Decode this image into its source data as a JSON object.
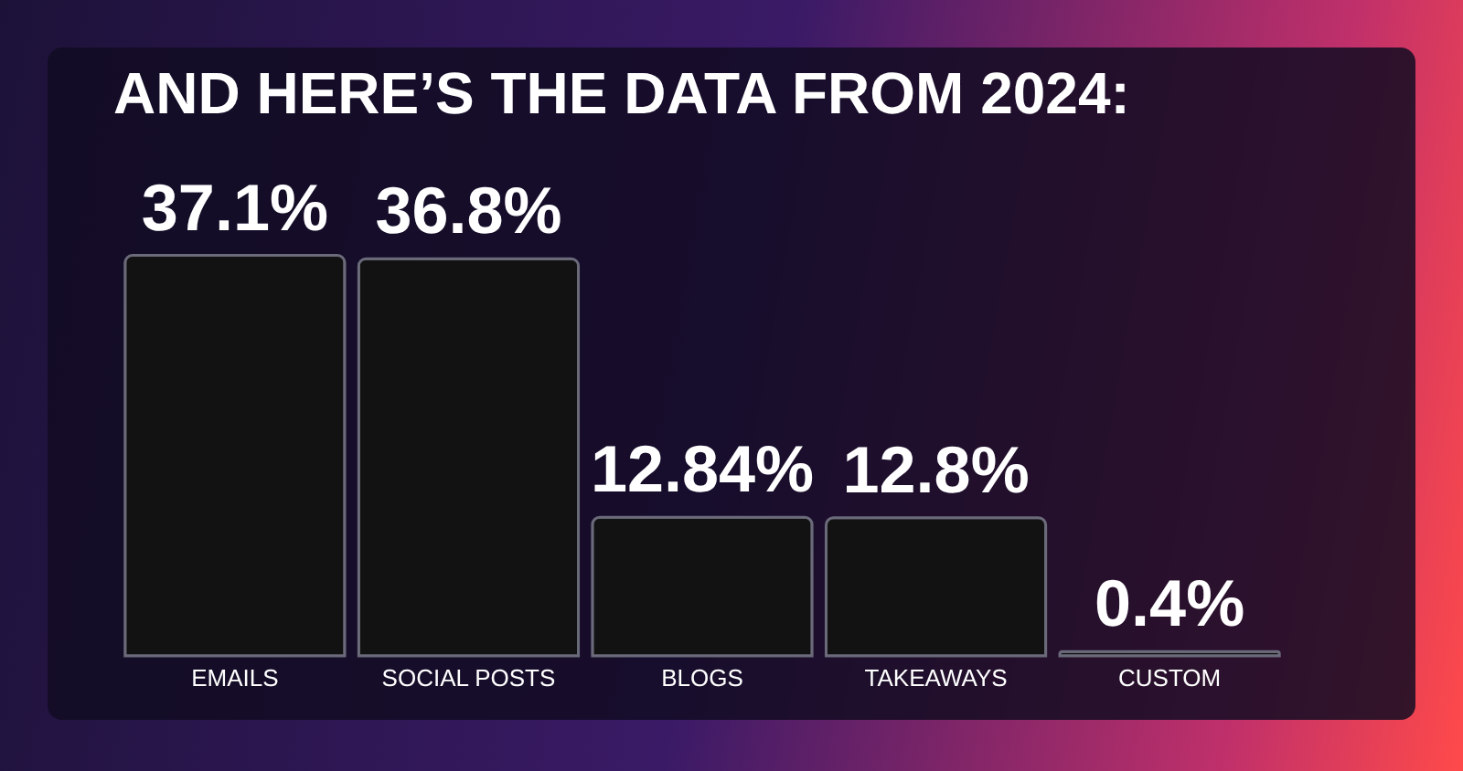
{
  "chart_data": {
    "type": "bar",
    "title": "AND HERE’S THE DATA FROM 2024:",
    "categories": [
      "EMAILS",
      "SOCIAL POSTS",
      "BLOGS",
      "TAKEAWAYS",
      "CUSTOM"
    ],
    "values": [
      37.1,
      36.8,
      12.84,
      12.8,
      0.4
    ],
    "value_labels": [
      "37.1%",
      "36.8%",
      "12.84%",
      "12.8%",
      "0.4%"
    ],
    "color": "#121212"
  }
}
